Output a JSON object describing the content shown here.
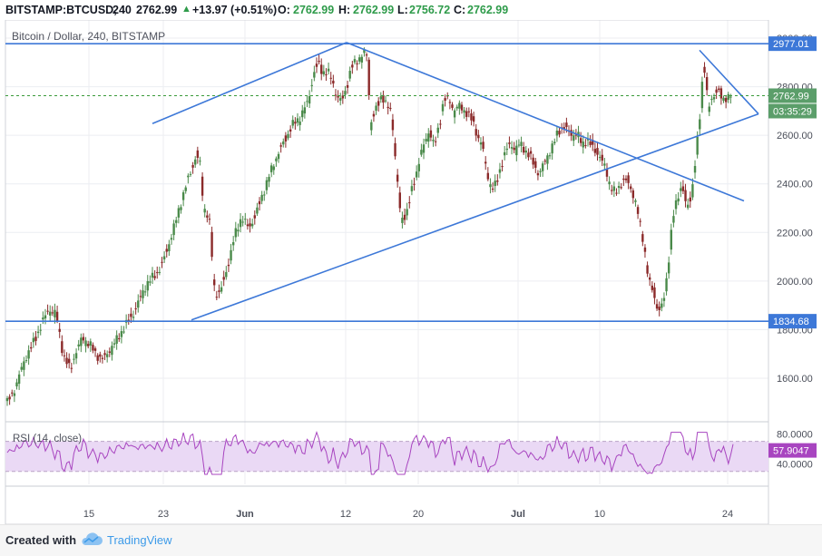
{
  "header": {
    "symbol": "BITSTAMP:BTCUSD,",
    "interval": "240",
    "last": "2762.99",
    "change": "+13.97 (+0.51%)",
    "o_label": "O:",
    "o_val": "2762.99",
    "h_label": "H:",
    "h_val": "2762.99",
    "l_label": "L:",
    "l_val": "2756.72",
    "c_label": "C:",
    "c_val": "2762.99"
  },
  "chart_title": "Bitcoin / Dollar, 240, BITSTAMP",
  "rsi_label": "RSI (14, close)",
  "footer": {
    "created_with": "Created with",
    "brand": "TradingView"
  },
  "colors": {
    "up": "#4a8a4a",
    "down": "#8b2a2a",
    "trendline": "#3d78d8",
    "current_line": "#3a9a3a",
    "rsi_line": "#a845c0",
    "rsi_band": "#ead9f5"
  },
  "chart_data": {
    "type": "candlestick",
    "price_axis": {
      "min": 1440,
      "max": 3080,
      "ticks": [
        1600,
        1800,
        2000,
        2200,
        2400,
        2600,
        2800,
        3000
      ],
      "tick_labels": [
        "1600.00",
        "1800.00",
        "2000.00",
        "2200.00",
        "2400.00",
        "2600.00",
        "2800.00",
        "3000.00"
      ]
    },
    "x_labels": [
      "15",
      "23",
      "Jun",
      "12",
      "20",
      "Jul",
      "10",
      "24"
    ],
    "price_tags": [
      {
        "label": "2977.01",
        "value": 2977.01,
        "style": "line"
      },
      {
        "label": "2762.99",
        "value": 2762.99,
        "style": "current"
      },
      {
        "label": "03:35:29",
        "value": 2700,
        "style": "timer"
      },
      {
        "label": "1834.68",
        "value": 1834.68,
        "style": "line"
      }
    ],
    "horizontal_levels": [
      2977.01,
      1834.68
    ],
    "current_price": 2762.99,
    "closes_anchor": [
      [
        0,
        1500
      ],
      [
        6,
        1540
      ],
      [
        12,
        1620
      ],
      [
        18,
        1700
      ],
      [
        24,
        1760
      ],
      [
        30,
        1830
      ],
      [
        36,
        1880
      ],
      [
        42,
        1860
      ],
      [
        48,
        1700
      ],
      [
        54,
        1640
      ],
      [
        58,
        1700
      ],
      [
        64,
        1760
      ],
      [
        70,
        1740
      ],
      [
        76,
        1700
      ],
      [
        82,
        1680
      ],
      [
        88,
        1720
      ],
      [
        94,
        1760
      ],
      [
        100,
        1820
      ],
      [
        106,
        1860
      ],
      [
        112,
        1920
      ],
      [
        118,
        1980
      ],
      [
        124,
        2020
      ],
      [
        130,
        2060
      ],
      [
        136,
        2140
      ],
      [
        142,
        2230
      ],
      [
        148,
        2340
      ],
      [
        154,
        2440
      ],
      [
        160,
        2520
      ],
      [
        163,
        2480
      ],
      [
        166,
        2300
      ],
      [
        170,
        2260
      ],
      [
        172,
        2200
      ],
      [
        174,
        2000
      ],
      [
        176,
        1950
      ],
      [
        180,
        1960
      ],
      [
        184,
        2020
      ],
      [
        188,
        2100
      ],
      [
        192,
        2180
      ],
      [
        198,
        2260
      ],
      [
        204,
        2220
      ],
      [
        210,
        2280
      ],
      [
        216,
        2360
      ],
      [
        222,
        2440
      ],
      [
        228,
        2520
      ],
      [
        234,
        2580
      ],
      [
        240,
        2640
      ],
      [
        246,
        2660
      ],
      [
        250,
        2700
      ],
      [
        254,
        2740
      ],
      [
        258,
        2850
      ],
      [
        262,
        2900
      ],
      [
        266,
        2860
      ],
      [
        270,
        2860
      ],
      [
        274,
        2820
      ],
      [
        278,
        2760
      ],
      [
        282,
        2740
      ],
      [
        286,
        2800
      ],
      [
        290,
        2880
      ],
      [
        294,
        2900
      ],
      [
        298,
        2920
      ],
      [
        302,
        2940
      ],
      [
        304,
        2900
      ],
      [
        306,
        2640
      ],
      [
        308,
        2680
      ],
      [
        312,
        2720
      ],
      [
        316,
        2770
      ],
      [
        320,
        2720
      ],
      [
        324,
        2680
      ],
      [
        328,
        2460
      ],
      [
        332,
        2240
      ],
      [
        336,
        2280
      ],
      [
        340,
        2360
      ],
      [
        344,
        2420
      ],
      [
        348,
        2520
      ],
      [
        352,
        2560
      ],
      [
        356,
        2620
      ],
      [
        360,
        2560
      ],
      [
        364,
        2640
      ],
      [
        368,
        2760
      ],
      [
        372,
        2740
      ],
      [
        376,
        2700
      ],
      [
        380,
        2720
      ],
      [
        384,
        2700
      ],
      [
        388,
        2700
      ],
      [
        392,
        2660
      ],
      [
        396,
        2600
      ],
      [
        400,
        2560
      ],
      [
        404,
        2440
      ],
      [
        408,
        2380
      ],
      [
        412,
        2400
      ],
      [
        416,
        2480
      ],
      [
        420,
        2540
      ],
      [
        424,
        2560
      ],
      [
        428,
        2540
      ],
      [
        432,
        2560
      ],
      [
        436,
        2540
      ],
      [
        440,
        2520
      ],
      [
        444,
        2480
      ],
      [
        448,
        2440
      ],
      [
        452,
        2480
      ],
      [
        456,
        2520
      ],
      [
        460,
        2560
      ],
      [
        464,
        2620
      ],
      [
        468,
        2640
      ],
      [
        472,
        2620
      ],
      [
        476,
        2600
      ],
      [
        480,
        2600
      ],
      [
        484,
        2560
      ],
      [
        488,
        2580
      ],
      [
        492,
        2560
      ],
      [
        496,
        2540
      ],
      [
        500,
        2500
      ],
      [
        504,
        2460
      ],
      [
        508,
        2380
      ],
      [
        512,
        2360
      ],
      [
        516,
        2400
      ],
      [
        520,
        2420
      ],
      [
        524,
        2400
      ],
      [
        528,
        2340
      ],
      [
        532,
        2250
      ],
      [
        536,
        2150
      ],
      [
        540,
        2000
      ],
      [
        544,
        1960
      ],
      [
        548,
        1880
      ],
      [
        552,
        1900
      ],
      [
        556,
        2040
      ],
      [
        560,
        2240
      ],
      [
        564,
        2340
      ],
      [
        568,
        2400
      ],
      [
        572,
        2300
      ],
      [
        576,
        2360
      ],
      [
        580,
        2520
      ],
      [
        584,
        2720
      ],
      [
        586,
        2900
      ],
      [
        588,
        2840
      ],
      [
        590,
        2700
      ],
      [
        594,
        2760
      ],
      [
        598,
        2800
      ],
      [
        602,
        2740
      ],
      [
        606,
        2760
      ],
      [
        610,
        2762.99
      ]
    ],
    "rsi": {
      "min": 20,
      "max": 90,
      "ticks": [
        40,
        80
      ],
      "tick_labels": [
        "40.0000",
        "80.0000"
      ],
      "last_label": "57.9047",
      "last": 57.9047,
      "band": [
        30,
        70
      ]
    }
  }
}
